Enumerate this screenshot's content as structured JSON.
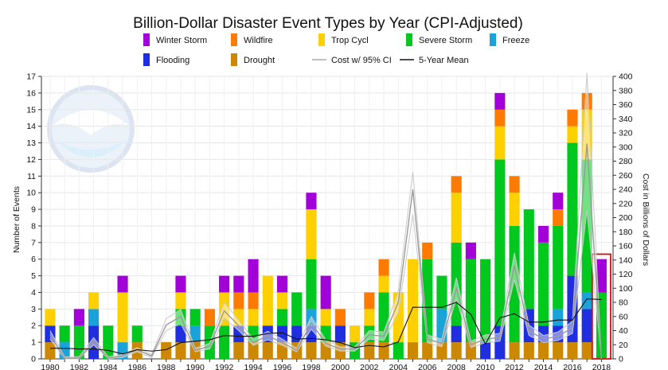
{
  "chart_data": {
    "type": "bar",
    "title": "Billion-Dollar Disaster Event Types by Year (CPI-Adjusted)",
    "ylabel_left": "Number of Events",
    "ylabel_right": "Cost in Billions of Dollars",
    "ylim_left": [
      0,
      17
    ],
    "ylim_right": [
      0,
      400
    ],
    "xlim": [
      1980,
      2018
    ],
    "x_tick_labels": [
      "1980",
      "1982",
      "1984",
      "1986",
      "1988",
      "1990",
      "1992",
      "1994",
      "1996",
      "1998",
      "2000",
      "2002",
      "2004",
      "2006",
      "2008",
      "2010",
      "2012",
      "2014",
      "2016",
      "2018"
    ],
    "y_left_ticks": [
      "0",
      "1",
      "2",
      "3",
      "4",
      "5",
      "6",
      "7",
      "8",
      "9",
      "10",
      "11",
      "12",
      "13",
      "14",
      "15",
      "16",
      "17"
    ],
    "y_right_ticks": [
      "0",
      "20",
      "40",
      "60",
      "80",
      "100",
      "120",
      "140",
      "160",
      "180",
      "200",
      "220",
      "240",
      "260",
      "280",
      "300",
      "320",
      "340",
      "360",
      "380",
      "400"
    ],
    "legend": [
      {
        "name": "Winter Storm",
        "color": "#a100d8",
        "kind": "swatch"
      },
      {
        "name": "Wildfire",
        "color": "#ff7a00",
        "kind": "swatch"
      },
      {
        "name": "Trop Cycl",
        "color": "#ffd000",
        "kind": "swatch"
      },
      {
        "name": "Severe Storm",
        "color": "#00c81e",
        "kind": "swatch"
      },
      {
        "name": "Freeze",
        "color": "#1aa3d9",
        "kind": "swatch"
      },
      {
        "name": "Flooding",
        "color": "#1f2fe0",
        "kind": "swatch"
      },
      {
        "name": "Drought",
        "color": "#cc8800",
        "kind": "swatch"
      },
      {
        "name": "Cost w/ 95% CI",
        "color": "#aaaaaa",
        "kind": "line"
      },
      {
        "name": "5-Year Mean",
        "color": "#111111",
        "kind": "line"
      }
    ],
    "stack_order": [
      "Drought",
      "Flooding",
      "Freeze",
      "Severe Storm",
      "Trop Cycl",
      "Wildfire",
      "Winter Storm"
    ],
    "series": [
      {
        "name": "Drought",
        "color": "#cc8800",
        "values": [
          1,
          0,
          0,
          0,
          0,
          0,
          1,
          0,
          1,
          1,
          1,
          0,
          0,
          1,
          1,
          1,
          1,
          1,
          1,
          1,
          1,
          0,
          1,
          1,
          0,
          1,
          1,
          1,
          1,
          1,
          0,
          0,
          1,
          1,
          1,
          1,
          1,
          1,
          0
        ]
      },
      {
        "name": "Flooding",
        "color": "#1f2fe0",
        "values": [
          1,
          0,
          0,
          2,
          0,
          0,
          0,
          0,
          0,
          1,
          0,
          0,
          0,
          1,
          0,
          1,
          1,
          1,
          1,
          0,
          1,
          0,
          0,
          0,
          0,
          0,
          0,
          0,
          1,
          0,
          1,
          2,
          0,
          2,
          1,
          1,
          4,
          2,
          0
        ]
      },
      {
        "name": "Freeze",
        "color": "#1aa3d9",
        "values": [
          0,
          1,
          0,
          1,
          0,
          1,
          0,
          0,
          0,
          0,
          1,
          0,
          0,
          0,
          0,
          0,
          0,
          0,
          1,
          0,
          0,
          0,
          0,
          0,
          0,
          0,
          0,
          2,
          0,
          0,
          0,
          0,
          0,
          0,
          0,
          1,
          0,
          1,
          0
        ]
      },
      {
        "name": "Severe Storm",
        "color": "#00c81e",
        "values": [
          0,
          1,
          2,
          0,
          2,
          0,
          1,
          0,
          0,
          1,
          1,
          2,
          2,
          0,
          1,
          0,
          1,
          2,
          3,
          1,
          0,
          1,
          1,
          3,
          1,
          0,
          5,
          2,
          5,
          5,
          5,
          10,
          7,
          6,
          5,
          5,
          8,
          8,
          4
        ]
      },
      {
        "name": "Trop Cycl",
        "color": "#ffd000",
        "values": [
          1,
          0,
          0,
          1,
          0,
          3,
          0,
          0,
          0,
          1,
          0,
          0,
          2,
          1,
          1,
          3,
          1,
          0,
          3,
          1,
          0,
          1,
          1,
          1,
          3,
          5,
          0,
          0,
          3,
          0,
          0,
          2,
          2,
          0,
          0,
          0,
          1,
          3,
          0
        ]
      },
      {
        "name": "Wildfire",
        "color": "#ff7a00",
        "values": [
          0,
          0,
          0,
          0,
          0,
          0,
          0,
          0,
          0,
          0,
          0,
          1,
          0,
          1,
          1,
          0,
          0,
          0,
          0,
          0,
          1,
          0,
          1,
          1,
          0,
          0,
          1,
          0,
          1,
          0,
          0,
          1,
          1,
          0,
          0,
          1,
          1,
          1,
          0
        ]
      },
      {
        "name": "Winter Storm",
        "color": "#a100d8",
        "values": [
          0,
          0,
          1,
          0,
          0,
          1,
          0,
          0,
          0,
          1,
          0,
          0,
          1,
          1,
          2,
          0,
          1,
          0,
          1,
          2,
          0,
          0,
          0,
          0,
          0,
          0,
          0,
          0,
          0,
          1,
          0,
          1,
          0,
          0,
          1,
          1,
          0,
          0,
          2
        ]
      }
    ],
    "cost": {
      "name": "Cost w/ 95% CI",
      "values": [
        34,
        1,
        1,
        24,
        1,
        4,
        13,
        4,
        48,
        60,
        12,
        18,
        68,
        47,
        23,
        33,
        23,
        12,
        51,
        22,
        14,
        14,
        34,
        32,
        80,
        240,
        28,
        22,
        100,
        20,
        28,
        30,
        132,
        40,
        28,
        32,
        44,
        305,
        0
      ],
      "ci_low": [
        28,
        0,
        0,
        20,
        0,
        2,
        10,
        2,
        40,
        50,
        10,
        14,
        58,
        40,
        19,
        27,
        19,
        10,
        42,
        18,
        11,
        11,
        28,
        26,
        65,
        205,
        23,
        17,
        85,
        16,
        23,
        25,
        112,
        33,
        23,
        26,
        36,
        210,
        0
      ],
      "ci_high": [
        40,
        3,
        3,
        30,
        3,
        6,
        16,
        6,
        57,
        70,
        15,
        22,
        80,
        55,
        28,
        39,
        28,
        15,
        60,
        27,
        17,
        17,
        40,
        38,
        96,
        265,
        34,
        28,
        115,
        25,
        34,
        36,
        150,
        48,
        33,
        38,
        53,
        405,
        0
      ]
    },
    "five_year_mean": {
      "name": "5-Year Mean",
      "values": [
        15,
        15,
        14,
        14,
        12,
        7,
        13,
        11,
        13,
        23,
        25,
        27,
        33,
        32,
        32,
        36,
        37,
        28,
        29,
        27,
        23,
        16,
        19,
        17,
        24,
        73,
        73,
        73,
        80,
        63,
        21,
        58,
        64,
        52,
        52,
        55,
        55,
        85,
        84
      ]
    },
    "note": "2018 bar highlighted with a red outline"
  }
}
